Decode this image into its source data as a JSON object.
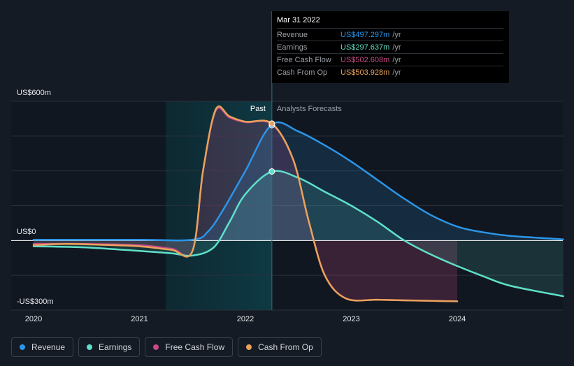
{
  "chart_data": {
    "type": "line",
    "x_range": [
      2019.85,
      2025.0
    ],
    "y_range": [
      -300,
      600
    ],
    "past_boundary": 2022.25,
    "y_axis_labels": [
      {
        "value": 600,
        "text": "US$600m"
      },
      {
        "value": 0,
        "text": "US$0"
      },
      {
        "value": -300,
        "text": "-US$300m"
      }
    ],
    "x_axis_labels": [
      {
        "value": 2020.0,
        "text": "2020"
      },
      {
        "value": 2021.0,
        "text": "2021"
      },
      {
        "value": 2022.0,
        "text": "2022"
      },
      {
        "value": 2023.0,
        "text": "2023"
      },
      {
        "value": 2024.0,
        "text": "2024"
      }
    ],
    "region_labels": {
      "past": "Past",
      "forecast": "Analysts Forecasts"
    },
    "series": [
      {
        "name": "Revenue",
        "color": "#2b95e8",
        "x": [
          2020.0,
          2021.0,
          2021.5,
          2021.65,
          2021.8,
          2022.0,
          2022.25,
          2022.5,
          2022.75,
          2023.0,
          2023.25,
          2023.5,
          2023.75,
          2024.0,
          2024.25,
          2024.5,
          2025.0
        ],
        "y": [
          3,
          3,
          3,
          40,
          140,
          300,
          500,
          470,
          410,
          340,
          260,
          180,
          110,
          60,
          35,
          20,
          5
        ]
      },
      {
        "name": "Earnings",
        "color": "#5fe0ca",
        "x": [
          2020.0,
          2020.5,
          2021.0,
          2021.3,
          2021.5,
          2021.7,
          2021.85,
          2022.0,
          2022.25,
          2022.5,
          2022.75,
          2023.0,
          2023.25,
          2023.5,
          2023.75,
          2024.0,
          2024.25,
          2024.5,
          2025.0
        ],
        "y": [
          -25,
          -30,
          -45,
          -55,
          -65,
          -30,
          80,
          200,
          297,
          270,
          210,
          150,
          80,
          0,
          -60,
          -110,
          -155,
          -195,
          -240
        ]
      },
      {
        "name": "Free Cash Flow",
        "color": "#c74a86",
        "x": [
          2020.0,
          2020.5,
          2021.0,
          2021.3,
          2021.5,
          2021.6,
          2021.72,
          2021.85,
          2022.0,
          2022.25,
          2022.45,
          2022.6,
          2022.75,
          2022.95,
          2023.25,
          2023.5,
          2024.0
        ],
        "y": [
          -15,
          -15,
          -20,
          -35,
          -45,
          300,
          560,
          530,
          510,
          502,
          350,
          80,
          -150,
          -250,
          -255,
          -258,
          -262
        ]
      },
      {
        "name": "Cash From Op",
        "color": "#e8a25a",
        "x": [
          2020.0,
          2020.3,
          2020.6,
          2021.0,
          2021.3,
          2021.5,
          2021.6,
          2021.72,
          2021.85,
          2022.0,
          2022.25,
          2022.45,
          2022.6,
          2022.75,
          2022.95,
          2023.25,
          2023.5,
          2024.0
        ],
        "y": [
          -20,
          -15,
          -18,
          -25,
          -40,
          -45,
          300,
          565,
          535,
          512,
          504,
          350,
          80,
          -150,
          -250,
          -255,
          -258,
          -262
        ]
      }
    ]
  },
  "tooltip": {
    "date": "Mar 31 2022",
    "rows": [
      {
        "label": "Revenue",
        "value": "US$497.297m",
        "unit": "/yr",
        "color": "#2b95e8"
      },
      {
        "label": "Earnings",
        "value": "US$297.637m",
        "unit": "/yr",
        "color": "#5fe0ca"
      },
      {
        "label": "Free Cash Flow",
        "value": "US$502.608m",
        "unit": "/yr",
        "color": "#c74a86"
      },
      {
        "label": "Cash From Op",
        "value": "US$503.928m",
        "unit": "/yr",
        "color": "#e8a25a"
      }
    ]
  },
  "legend": [
    {
      "label": "Revenue",
      "color": "#2b95e8"
    },
    {
      "label": "Earnings",
      "color": "#5fe0ca"
    },
    {
      "label": "Free Cash Flow",
      "color": "#c74a86"
    },
    {
      "label": "Cash From Op",
      "color": "#e8a25a"
    }
  ]
}
